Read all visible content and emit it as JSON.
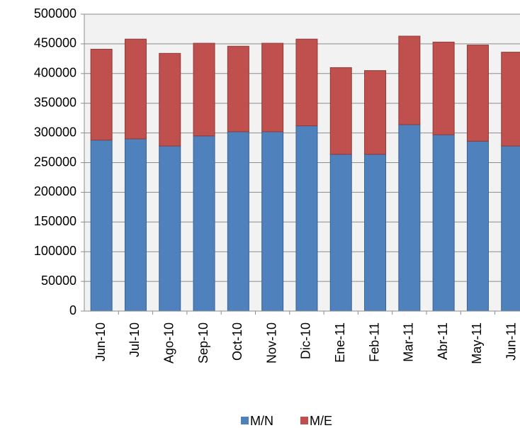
{
  "chart_data": {
    "type": "stacked_bar",
    "categories": [
      "Jun-10",
      "Jul-10",
      "Ago-10",
      "Sep-10",
      "Oct-10",
      "Nov-10",
      "Dic-10",
      "Ene-11",
      "Feb-11",
      "Mar-11",
      "Abr-11",
      "May-11",
      "Jun-11"
    ],
    "series": [
      {
        "name": "M/N",
        "color": "#4f81bd",
        "values": [
          288000,
          290000,
          278000,
          295000,
          302000,
          302000,
          312000,
          264000,
          264000,
          314000,
          297000,
          286000,
          278000
        ]
      },
      {
        "name": "M/E",
        "color": "#c0504d",
        "values": [
          153000,
          168000,
          156000,
          156000,
          144000,
          149000,
          146000,
          146000,
          141000,
          149000,
          156000,
          162000,
          158000
        ]
      }
    ],
    "ylim": [
      0,
      500000
    ],
    "yticks": [
      0,
      50000,
      100000,
      150000,
      200000,
      250000,
      300000,
      350000,
      400000,
      450000,
      500000
    ],
    "grid": true,
    "legend": "bottom"
  }
}
